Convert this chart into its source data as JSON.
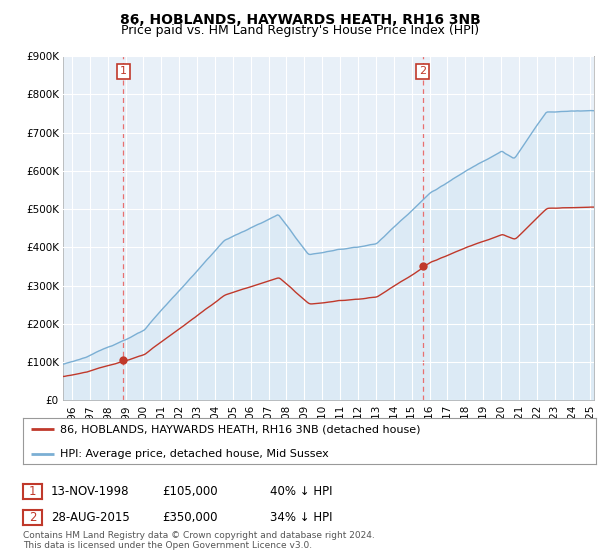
{
  "title": "86, HOBLANDS, HAYWARDS HEATH, RH16 3NB",
  "subtitle": "Price paid vs. HM Land Registry's House Price Index (HPI)",
  "ylim": [
    0,
    900000
  ],
  "yticks": [
    0,
    100000,
    200000,
    300000,
    400000,
    500000,
    600000,
    700000,
    800000,
    900000
  ],
  "ytick_labels": [
    "£0",
    "£100K",
    "£200K",
    "£300K",
    "£400K",
    "£500K",
    "£600K",
    "£700K",
    "£800K",
    "£900K"
  ],
  "hpi_color": "#7bafd4",
  "hpi_fill_color": "#dceaf5",
  "price_color": "#c0392b",
  "dashed_color": "#e87070",
  "annotation_box_color": "#c0392b",
  "transaction1_year": 1998.87,
  "transaction1_price": 105000,
  "transaction1_label": "1",
  "transaction1_date": "13-NOV-1998",
  "transaction1_pct": "40% ↓ HPI",
  "transaction1_amount": "£105,000",
  "transaction2_year": 2015.62,
  "transaction2_price": 350000,
  "transaction2_label": "2",
  "transaction2_date": "28-AUG-2015",
  "transaction2_pct": "34% ↓ HPI",
  "transaction2_amount": "£350,000",
  "legend_label1": "86, HOBLANDS, HAYWARDS HEATH, RH16 3NB (detached house)",
  "legend_label2": "HPI: Average price, detached house, Mid Sussex",
  "footer": "Contains HM Land Registry data © Crown copyright and database right 2024.\nThis data is licensed under the Open Government Licence v3.0.",
  "plot_bg_color": "#e8f0f8",
  "fig_bg_color": "#ffffff",
  "grid_color": "#ffffff",
  "title_fontsize": 10,
  "subtitle_fontsize": 9,
  "tick_fontsize": 7.5,
  "legend_fontsize": 8,
  "table_fontsize": 8.5,
  "footer_fontsize": 6.5,
  "xstart": 1995.5,
  "xend": 2025.2
}
